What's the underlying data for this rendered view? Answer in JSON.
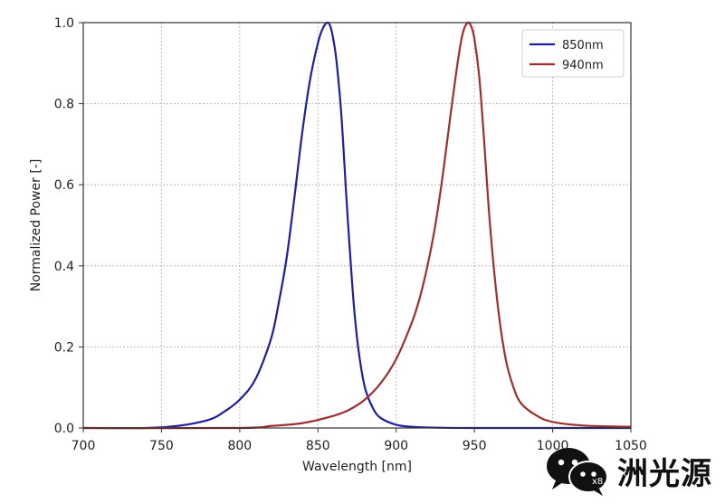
{
  "chart_data": {
    "type": "line",
    "title": "",
    "xlabel": "Wavelength [nm]",
    "ylabel": "Normalized Power [-]",
    "xlim": [
      700,
      1050
    ],
    "ylim": [
      0,
      1.0
    ],
    "xticks": [
      700,
      750,
      800,
      850,
      900,
      950,
      1000,
      1050
    ],
    "yticks": [
      0.0,
      0.2,
      0.4,
      0.6,
      0.8,
      1.0
    ],
    "xtick_labels": [
      "700",
      "750",
      "800",
      "850",
      "900",
      "950",
      "1000",
      "1050"
    ],
    "ytick_labels": [
      "0.0",
      "0.2",
      "0.4",
      "0.6",
      "0.8",
      "1.0"
    ],
    "grid": true,
    "legend_position": "top-right",
    "series": [
      {
        "name": "850nm",
        "color": "#1f1f9e",
        "x": [
          700,
          740,
          760,
          780,
          790,
          800,
          810,
          820,
          825,
          830,
          835,
          840,
          845,
          850,
          853,
          856,
          858,
          860,
          862,
          865,
          868,
          870,
          873,
          876,
          880,
          885,
          890,
          900,
          910,
          925,
          950,
          1050
        ],
        "y": [
          0.0,
          0.0,
          0.005,
          0.02,
          0.04,
          0.07,
          0.12,
          0.22,
          0.31,
          0.42,
          0.57,
          0.73,
          0.86,
          0.95,
          0.985,
          1.0,
          0.99,
          0.955,
          0.9,
          0.77,
          0.58,
          0.46,
          0.3,
          0.19,
          0.1,
          0.05,
          0.025,
          0.008,
          0.003,
          0.001,
          0.0,
          0.0
        ]
      },
      {
        "name": "940nm",
        "color": "#9e2f2f",
        "x": [
          700,
          800,
          820,
          840,
          860,
          870,
          880,
          890,
          900,
          910,
          915,
          920,
          925,
          930,
          935,
          940,
          943,
          946,
          948,
          950,
          953,
          956,
          960,
          965,
          970,
          975,
          980,
          990,
          1000,
          1020,
          1050
        ],
        "y": [
          0.0,
          0.0,
          0.005,
          0.012,
          0.03,
          0.045,
          0.07,
          0.11,
          0.17,
          0.26,
          0.32,
          0.4,
          0.5,
          0.63,
          0.78,
          0.92,
          0.98,
          1.0,
          0.99,
          0.96,
          0.87,
          0.72,
          0.5,
          0.3,
          0.17,
          0.1,
          0.06,
          0.03,
          0.015,
          0.006,
          0.003
        ]
      }
    ]
  },
  "watermark": {
    "text": "洲光源",
    "badge": "x8.4"
  }
}
